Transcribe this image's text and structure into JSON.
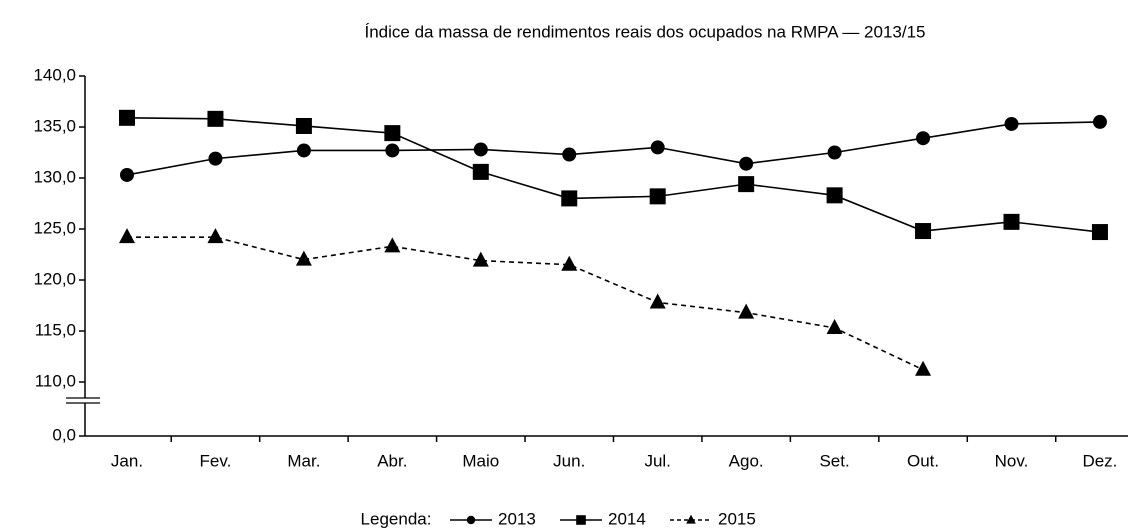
{
  "chart_data": {
    "type": "line",
    "title": "Índice da massa de rendimentos reais dos ocupados na RMPA — 2013/15",
    "legend_title": "Legenda:",
    "categories": [
      "Jan.",
      "Fev.",
      "Mar.",
      "Abr.",
      "Maio",
      "Jun.",
      "Jul.",
      "Ago.",
      "Set.",
      "Out.",
      "Nov.",
      "Dez."
    ],
    "series": [
      {
        "name": "2013",
        "color": "#000000",
        "marker": "circle",
        "line_style": "solid",
        "values": [
          130.3,
          131.9,
          132.7,
          132.7,
          132.8,
          132.3,
          133.0,
          131.4,
          132.5,
          133.9,
          135.3,
          135.5
        ]
      },
      {
        "name": "2014",
        "color": "#000000",
        "marker": "square",
        "line_style": "solid",
        "values": [
          135.9,
          135.8,
          135.1,
          134.4,
          130.6,
          128.0,
          128.2,
          129.4,
          128.3,
          124.8,
          125.7,
          124.7
        ]
      },
      {
        "name": "2015",
        "color": "#000000",
        "marker": "triangle",
        "line_style": "dashed",
        "values": [
          124.2,
          124.2,
          122.0,
          123.3,
          121.9,
          121.5,
          117.8,
          116.8,
          115.3,
          111.2,
          null,
          null
        ]
      }
    ],
    "ylim": [
      0,
      140
    ],
    "axis_break": true,
    "yticks": [
      {
        "value": 0,
        "label": "0,0"
      },
      {
        "value": 110,
        "label": "110,0"
      },
      {
        "value": 115,
        "label": "115,0"
      },
      {
        "value": 120,
        "label": "120,0"
      },
      {
        "value": 125,
        "label": "125,0"
      },
      {
        "value": 130,
        "label": "130,0"
      },
      {
        "value": 135,
        "label": "135,0"
      },
      {
        "value": 140,
        "label": "140,0"
      }
    ],
    "grid": false
  }
}
